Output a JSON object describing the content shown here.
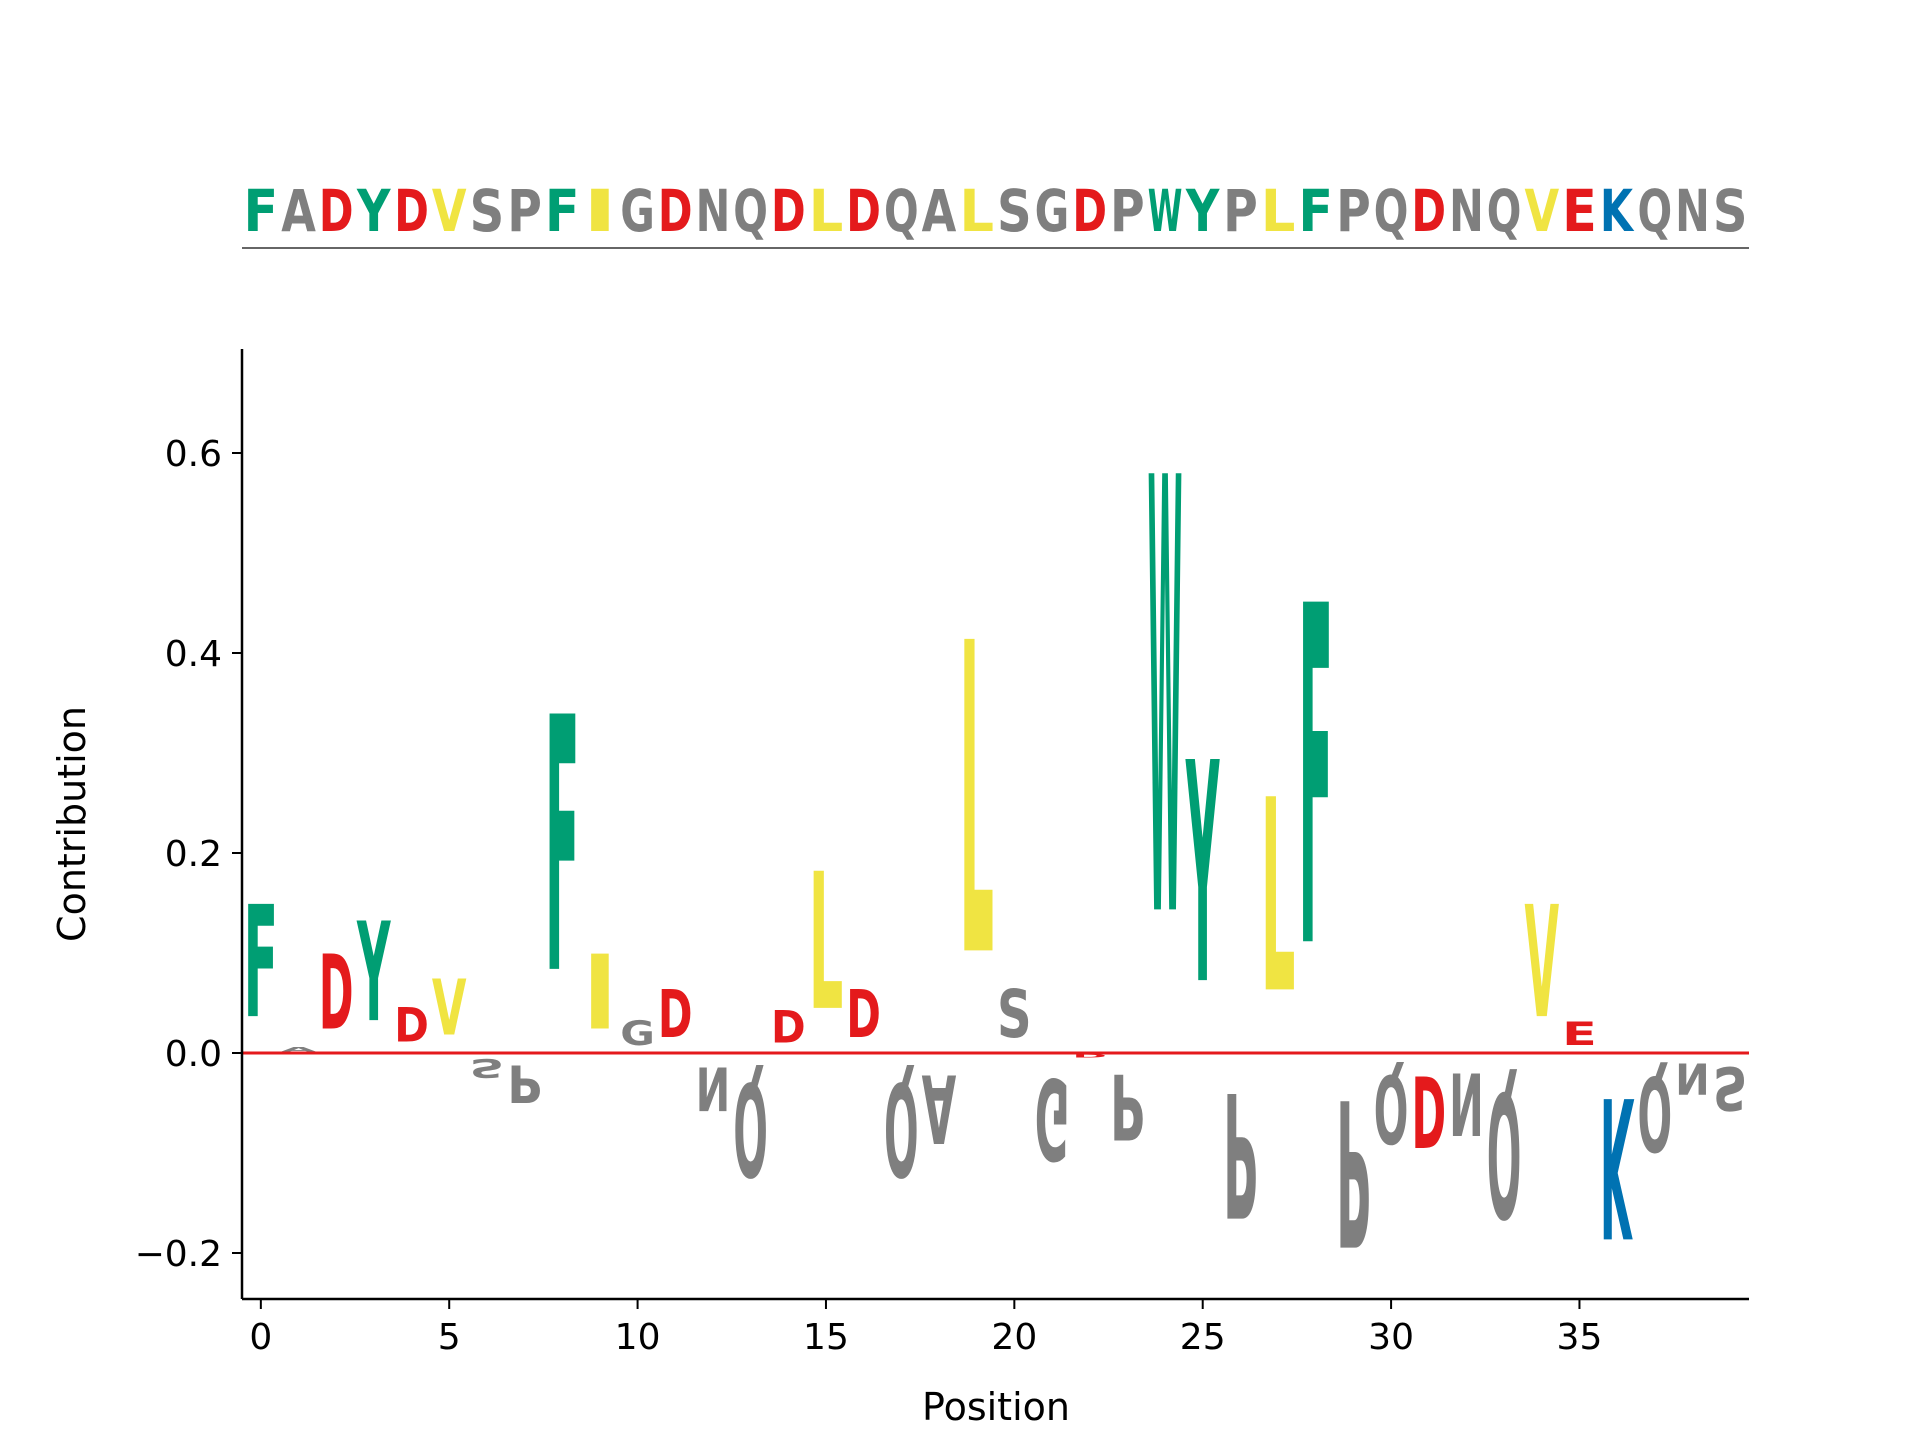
{
  "chart_data": {
    "type": "sequence-logo",
    "xlabel": "Position",
    "ylabel": "Contribution",
    "xlim": [
      -0.5,
      39.5
    ],
    "ylim": [
      -0.245,
      0.7
    ],
    "x_ticks": [
      0,
      5,
      10,
      15,
      20,
      25,
      30,
      35
    ],
    "x_tick_labels": [
      "0",
      "5",
      "10",
      "15",
      "20",
      "25",
      "30",
      "35"
    ],
    "y_ticks": [
      -0.2,
      0.0,
      0.2,
      0.4,
      0.6
    ],
    "y_tick_labels": [
      "−0.2",
      "0.0",
      "0.2",
      "0.4",
      "0.6"
    ],
    "baseline_color": "#e41a1c",
    "colors": {
      "F": "#009e73",
      "W": "#009e73",
      "Y": "#009e73",
      "A": "#7f7f7f",
      "G": "#7f7f7f",
      "N": "#7f7f7f",
      "P": "#7f7f7f",
      "Q": "#7f7f7f",
      "S": "#7f7f7f",
      "T": "#7f7f7f",
      "D": "#e41a1c",
      "E": "#e41a1c",
      "I": "#f0e442",
      "L": "#f0e442",
      "V": "#f0e442",
      "M": "#f0e442",
      "K": "#0072b2",
      "R": "#0072b2",
      "H": "#0072b2"
    },
    "sequence": "FADYDVSPFIGDNQDLDQALSGDPWYPLFPQDNQVEKQNS",
    "contributions": [
      0.18,
      0.007,
      0.12,
      0.16,
      0.055,
      0.09,
      -0.03,
      -0.06,
      0.41,
      0.12,
      0.04,
      0.077,
      -0.07,
      -0.15,
      0.052,
      0.22,
      0.077,
      -0.15,
      -0.11,
      0.5,
      0.077,
      -0.13,
      -0.005,
      -0.105,
      0.7,
      0.355,
      -0.2,
      0.31,
      0.545,
      -0.235,
      -0.11,
      -0.115,
      -0.1,
      -0.2,
      0.18,
      0.038,
      -0.225,
      -0.12,
      -0.05,
      -0.07
    ]
  }
}
